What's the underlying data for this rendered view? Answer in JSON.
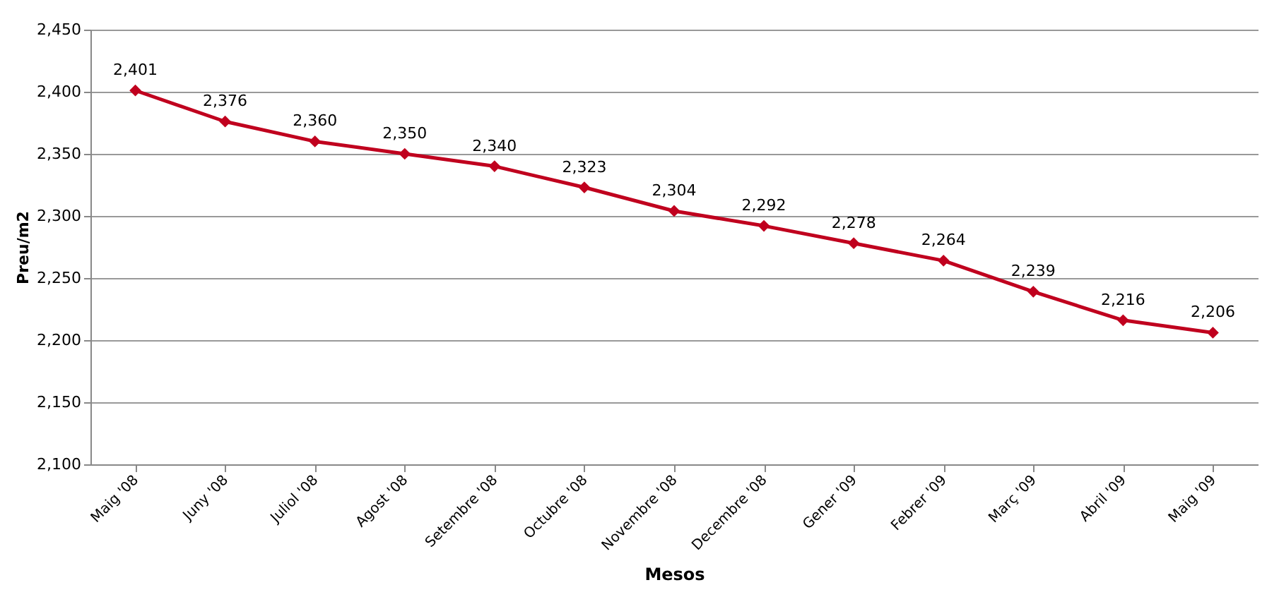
{
  "chart_data": {
    "type": "line",
    "xlabel": "Mesos",
    "ylabel": "Preu/m2",
    "categories": [
      "Maig '08",
      "Juny '08",
      "Juliol '08",
      "Agost '08",
      "Setembre '08",
      "Octubre '08",
      "Novembre '08",
      "Decembre '08",
      "Gener '09",
      "Febrer '09",
      "Març '09",
      "Abril '09",
      "Maig '09"
    ],
    "series": [
      {
        "color": "#c0001e",
        "values": [
          2401,
          2376,
          2360,
          2350,
          2340,
          2323,
          2304,
          2292,
          2278,
          2264,
          2239,
          2216,
          2206
        ],
        "value_labels": [
          "2,401",
          "2,376",
          "2,360",
          "2,350",
          "2,340",
          "2,323",
          "2,304",
          "2,292",
          "2,278",
          "2,264",
          "2,239",
          "2,216",
          "2,206"
        ]
      }
    ],
    "ylim": [
      2100,
      2450
    ],
    "yticks": [
      {
        "value": 2100,
        "label": "2,100"
      },
      {
        "value": 2150,
        "label": "2,150"
      },
      {
        "value": 2200,
        "label": "2,200"
      },
      {
        "value": 2250,
        "label": "2,250"
      },
      {
        "value": 2300,
        "label": "2,300"
      },
      {
        "value": 2350,
        "label": "2,350"
      },
      {
        "value": 2400,
        "label": "2,400"
      },
      {
        "value": 2450,
        "label": "2,450"
      }
    ],
    "grid": "y",
    "marker": "diamond",
    "line_style": "solid"
  }
}
